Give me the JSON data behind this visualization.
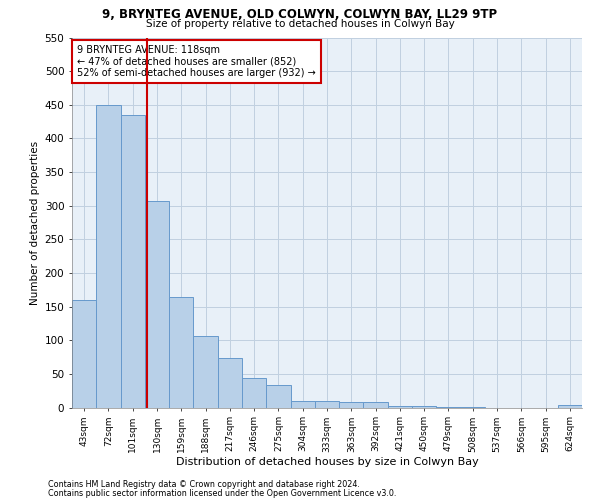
{
  "title1": "9, BRYNTEG AVENUE, OLD COLWYN, COLWYN BAY, LL29 9TP",
  "title2": "Size of property relative to detached houses in Colwyn Bay",
  "xlabel": "Distribution of detached houses by size in Colwyn Bay",
  "ylabel": "Number of detached properties",
  "categories": [
    "43sqm",
    "72sqm",
    "101sqm",
    "130sqm",
    "159sqm",
    "188sqm",
    "217sqm",
    "246sqm",
    "275sqm",
    "304sqm",
    "333sqm",
    "363sqm",
    "392sqm",
    "421sqm",
    "450sqm",
    "479sqm",
    "508sqm",
    "537sqm",
    "566sqm",
    "595sqm",
    "624sqm"
  ],
  "values": [
    160,
    450,
    435,
    307,
    165,
    107,
    73,
    44,
    33,
    10,
    10,
    8,
    8,
    2,
    2,
    1,
    1,
    0,
    0,
    0,
    4
  ],
  "bar_color": "#b8d0e8",
  "bar_edge_color": "#6699cc",
  "grid_color": "#c0d0e0",
  "bg_color": "#e8f0f8",
  "vline_color": "#cc0000",
  "annotation_line1": "9 BRYNTEG AVENUE: 118sqm",
  "annotation_line2": "← 47% of detached houses are smaller (852)",
  "annotation_line3": "52% of semi-detached houses are larger (932) →",
  "annotation_box_color": "#ffffff",
  "annotation_box_edge": "#cc0000",
  "ylim": [
    0,
    550
  ],
  "yticks": [
    0,
    50,
    100,
    150,
    200,
    250,
    300,
    350,
    400,
    450,
    500,
    550
  ],
  "footnote1": "Contains HM Land Registry data © Crown copyright and database right 2024.",
  "footnote2": "Contains public sector information licensed under the Open Government Licence v3.0.",
  "property_sqm": 118,
  "bin_width": 29
}
